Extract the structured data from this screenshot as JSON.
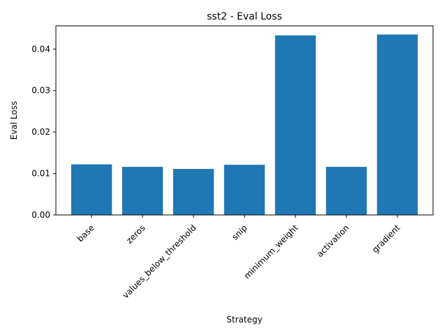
{
  "chart_data": {
    "type": "bar",
    "title": "sst2 - Eval Loss",
    "xlabel": "Strategy",
    "ylabel": "Eval Loss",
    "categories": [
      "base",
      "zeros",
      "values_below_threshold",
      "snip",
      "minimum_weight",
      "activation",
      "gradient"
    ],
    "values": [
      0.0122,
      0.0116,
      0.0111,
      0.0121,
      0.0433,
      0.0116,
      0.0435
    ],
    "ylim": [
      0,
      0.0456
    ],
    "yticks": [
      0.0,
      0.01,
      0.02,
      0.03,
      0.04
    ],
    "ytick_labels": [
      "0.00",
      "0.01",
      "0.02",
      "0.03",
      "0.04"
    ],
    "x_tick_rotation_deg": 45,
    "bar_color": "#1f77b4",
    "grid": false,
    "legend": "none"
  }
}
